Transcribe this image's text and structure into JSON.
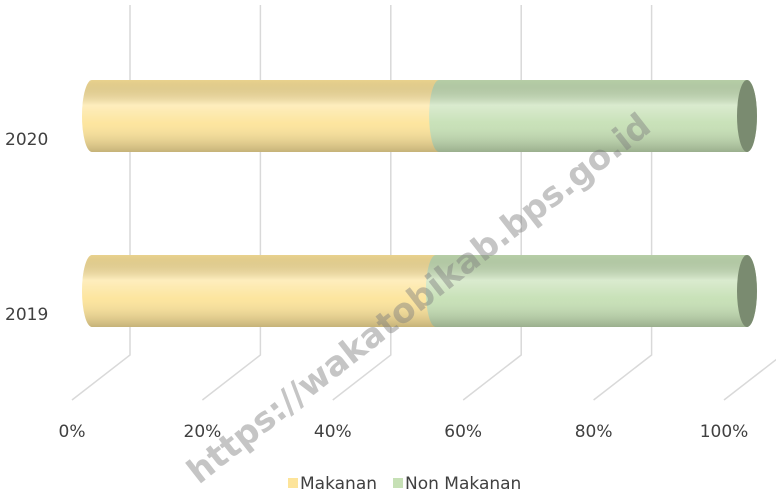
{
  "chart_data": {
    "type": "stacked-bar-horizontal",
    "categories": [
      "2019",
      "2020"
    ],
    "series": [
      {
        "name": "Makanan",
        "color": "#fde49a",
        "values": [
          52.5,
          53
        ]
      },
      {
        "name": "Non Makanan",
        "color": "#c6e0b5",
        "values": [
          47.5,
          47
        ]
      }
    ],
    "xlim": [
      0,
      100
    ],
    "xticks": [
      {
        "value": 0,
        "label": "0%"
      },
      {
        "value": 20,
        "label": "20%"
      },
      {
        "value": 40,
        "label": "40%"
      },
      {
        "value": 60,
        "label": "60%"
      },
      {
        "value": 80,
        "label": "80%"
      },
      {
        "value": 100,
        "label": "100%"
      }
    ],
    "grid": true,
    "legend": "bottom",
    "watermark": "https://wakatobikab.bps.go.id"
  }
}
